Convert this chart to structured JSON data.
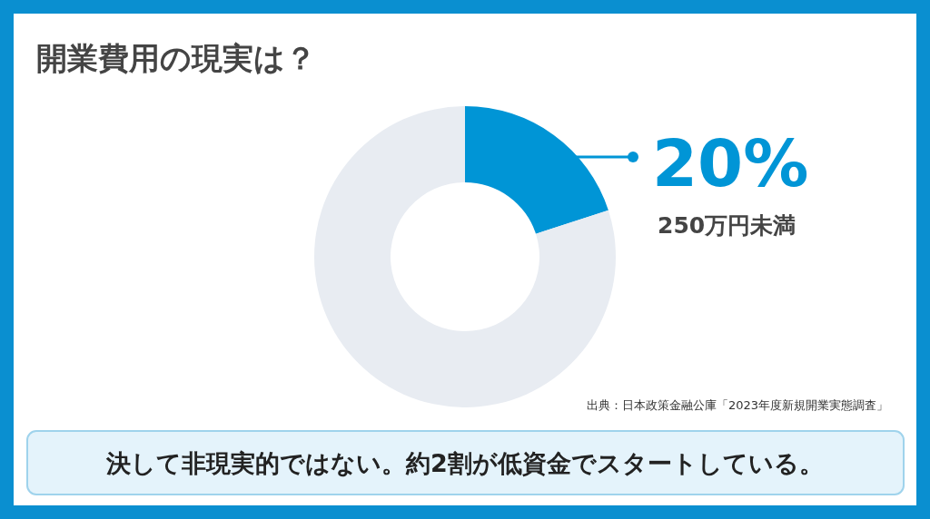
{
  "chart_data": {
    "type": "donut",
    "title": "開業費用の現実は？",
    "categories": [
      "250万円未満",
      null
    ],
    "values": [
      20,
      80
    ],
    "colors": [
      "#0095d6",
      "#e8ecf2"
    ],
    "value_labels": [
      "20%",
      null
    ],
    "annotations": [
      "出典：日本政策金融公庫「2023年度新規開業実態調査」",
      "決して非現実的ではない。約2割が低資金でスタートしている。"
    ]
  }
}
